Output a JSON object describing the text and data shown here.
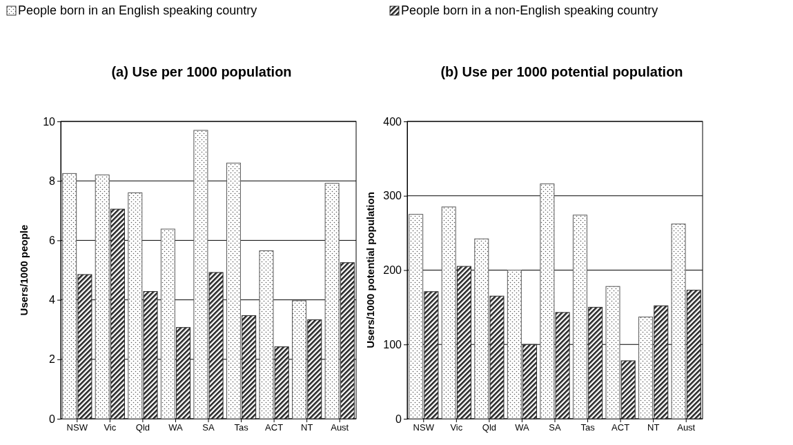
{
  "chart_data": [
    {
      "type": "bar",
      "title": "(a) Use per 1000 population",
      "ylabel": "Users/1000 people",
      "categories": [
        "NSW",
        "Vic",
        "Qld",
        "WA",
        "SA",
        "Tas",
        "ACT",
        "NT",
        "Aust"
      ],
      "series": [
        {
          "name": "People born in an English speaking country",
          "color": "#595959",
          "values": [
            8.25,
            8.2,
            7.6,
            6.38,
            9.7,
            8.6,
            5.65,
            3.97,
            7.92
          ]
        },
        {
          "name": "People born in a non-English speaking country",
          "color": "#262626",
          "values": [
            4.85,
            7.05,
            4.28,
            3.07,
            4.92,
            3.47,
            2.42,
            3.33,
            5.25
          ]
        }
      ],
      "ylim": [
        0,
        10
      ],
      "yticks": [
        0,
        2,
        4,
        6,
        8,
        10
      ],
      "grid": "y",
      "legend": "top"
    },
    {
      "type": "bar",
      "title": "(b) Use per 1000 potential population",
      "ylabel": "Users/1000 potential population",
      "categories": [
        "NSW",
        "Vic",
        "Qld",
        "WA",
        "SA",
        "Tas",
        "ACT",
        "NT",
        "Aust"
      ],
      "series": [
        {
          "color": "#595959",
          "values": [
            275,
            285,
            242,
            200,
            316,
            274,
            178,
            137,
            262
          ]
        },
        {
          "color": "#262626",
          "values": [
            171,
            205,
            165,
            100,
            143,
            150,
            78,
            152,
            173
          ]
        }
      ],
      "ylim": [
        0,
        400
      ],
      "yticks": [
        0,
        100,
        200,
        300,
        400
      ],
      "grid": "y"
    }
  ]
}
